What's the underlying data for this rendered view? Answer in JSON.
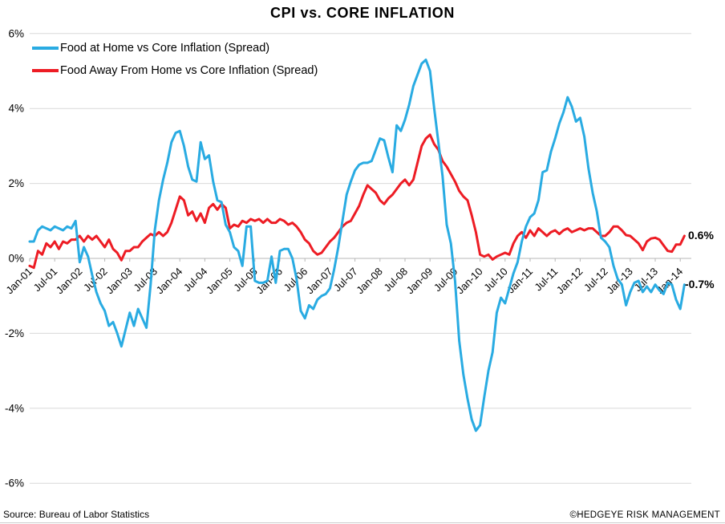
{
  "chart_data": {
    "type": "line",
    "title": "CPI vs. CORE INFLATION",
    "frequency": "monthly",
    "x_start": "Jan-01",
    "x_end": "Feb-14",
    "ylim": [
      -6,
      6
    ],
    "grid": "horizontal",
    "legend_position": "top-left",
    "y_tick_values": [
      6,
      4,
      2,
      0,
      -2,
      -4,
      -6
    ],
    "y_tick_labels": [
      "6%",
      "4%",
      "2%",
      "0%",
      "-2%",
      "-4%",
      "-6%"
    ],
    "x_tick_labels": [
      "Jan-01",
      "Jul-01",
      "Jan-02",
      "Jul-02",
      "Jan-03",
      "Jul-03",
      "Jan-04",
      "Jul-04",
      "Jan-05",
      "Jul-05",
      "Jan-06",
      "Jul-06",
      "Jan-07",
      "Jul-07",
      "Jan-08",
      "Jul-08",
      "Jan-09",
      "Jul-09",
      "Jan-10",
      "Jul-10",
      "Jan-11",
      "Jul-11",
      "Jan-12",
      "Jul-12",
      "Jan-13",
      "Jul-13",
      "Jan-14"
    ],
    "series": [
      {
        "name": "Food Away From Home vs Core Inflation (Spread)",
        "color": "#ED1C24",
        "end_label": "0.6%",
        "values": [
          -0.2,
          -0.25,
          0.2,
          0.1,
          0.4,
          0.3,
          0.45,
          0.25,
          0.45,
          0.4,
          0.5,
          0.5,
          0.6,
          0.45,
          0.6,
          0.5,
          0.6,
          0.45,
          0.3,
          0.5,
          0.25,
          0.15,
          -0.05,
          0.2,
          0.2,
          0.3,
          0.3,
          0.45,
          0.55,
          0.65,
          0.6,
          0.7,
          0.6,
          0.7,
          0.95,
          1.3,
          1.65,
          1.55,
          1.15,
          1.25,
          1.0,
          1.2,
          0.95,
          1.35,
          1.45,
          1.3,
          1.45,
          1.35,
          0.8,
          0.9,
          0.85,
          1.0,
          0.95,
          1.05,
          1.0,
          1.05,
          0.95,
          1.05,
          0.95,
          0.95,
          1.05,
          1.0,
          0.9,
          0.95,
          0.85,
          0.7,
          0.5,
          0.4,
          0.2,
          0.1,
          0.15,
          0.3,
          0.45,
          0.55,
          0.7,
          0.85,
          0.95,
          1.0,
          1.2,
          1.4,
          1.7,
          1.95,
          1.85,
          1.75,
          1.55,
          1.45,
          1.6,
          1.7,
          1.85,
          2.0,
          2.1,
          1.95,
          2.1,
          2.55,
          3.0,
          3.2,
          3.3,
          3.05,
          2.9,
          2.6,
          2.45,
          2.25,
          2.05,
          1.8,
          1.65,
          1.55,
          1.15,
          0.7,
          0.1,
          0.05,
          0.1,
          -0.03,
          0.05,
          0.1,
          0.15,
          0.1,
          0.4,
          0.6,
          0.7,
          0.55,
          0.75,
          0.6,
          0.8,
          0.7,
          0.6,
          0.7,
          0.75,
          0.65,
          0.75,
          0.8,
          0.7,
          0.75,
          0.8,
          0.75,
          0.8,
          0.8,
          0.7,
          0.6,
          0.6,
          0.7,
          0.85,
          0.85,
          0.75,
          0.62,
          0.6,
          0.5,
          0.4,
          0.22,
          0.45,
          0.53,
          0.55,
          0.5,
          0.35,
          0.2,
          0.18,
          0.37,
          0.37,
          0.6
        ]
      },
      {
        "name": "Food at Home vs Core Inflation (Spread)",
        "color": "#29ABE2",
        "end_label": "-0.7%",
        "values": [
          0.45,
          0.45,
          0.75,
          0.85,
          0.8,
          0.75,
          0.85,
          0.8,
          0.75,
          0.85,
          0.8,
          1.0,
          -0.1,
          0.3,
          0.05,
          -0.45,
          -0.9,
          -1.2,
          -1.4,
          -1.8,
          -1.7,
          -2.0,
          -2.35,
          -1.9,
          -1.45,
          -1.8,
          -1.35,
          -1.6,
          -1.85,
          -0.7,
          0.75,
          1.55,
          2.1,
          2.55,
          3.1,
          3.35,
          3.4,
          3.0,
          2.45,
          2.1,
          2.05,
          3.1,
          2.65,
          2.75,
          2.05,
          1.55,
          1.5,
          0.9,
          0.7,
          0.3,
          0.2,
          -0.2,
          0.85,
          0.85,
          -0.6,
          -0.65,
          -0.65,
          -0.6,
          0.05,
          -0.65,
          0.2,
          0.25,
          0.25,
          0.0,
          -0.55,
          -1.4,
          -1.6,
          -1.25,
          -1.35,
          -1.1,
          -1.0,
          -0.95,
          -0.8,
          -0.3,
          0.3,
          1.0,
          1.7,
          2.05,
          2.35,
          2.5,
          2.55,
          2.55,
          2.6,
          2.9,
          3.2,
          3.15,
          2.7,
          2.3,
          3.55,
          3.4,
          3.7,
          4.1,
          4.6,
          4.9,
          5.2,
          5.3,
          5.0,
          4.0,
          3.1,
          2.2,
          0.9,
          0.4,
          -0.6,
          -2.2,
          -3.1,
          -3.75,
          -4.3,
          -4.6,
          -4.45,
          -3.7,
          -3.0,
          -2.5,
          -1.45,
          -1.05,
          -1.2,
          -0.8,
          -0.4,
          -0.1,
          0.45,
          0.85,
          1.1,
          1.2,
          1.55,
          2.3,
          2.35,
          2.85,
          3.2,
          3.6,
          3.9,
          4.3,
          4.05,
          3.65,
          3.75,
          3.25,
          2.4,
          1.75,
          1.25,
          0.55,
          0.45,
          0.3,
          -0.2,
          -0.55,
          -0.7,
          -1.25,
          -0.9,
          -0.65,
          -0.6,
          -0.9,
          -0.75,
          -0.9,
          -0.7,
          -0.85,
          -0.95,
          -0.65,
          -0.7,
          -1.1,
          -1.35,
          -0.7
        ]
      }
    ],
    "colors": {
      "grid": "#d9d9d9",
      "axis": "#b7b7b7",
      "text": "#000000"
    }
  },
  "legend_order_note": "blue listed first in legend",
  "footer": {
    "source": "Source: Bureau of Labor Statistics",
    "branding": "©HEDGEYE RISK MANAGEMENT"
  }
}
